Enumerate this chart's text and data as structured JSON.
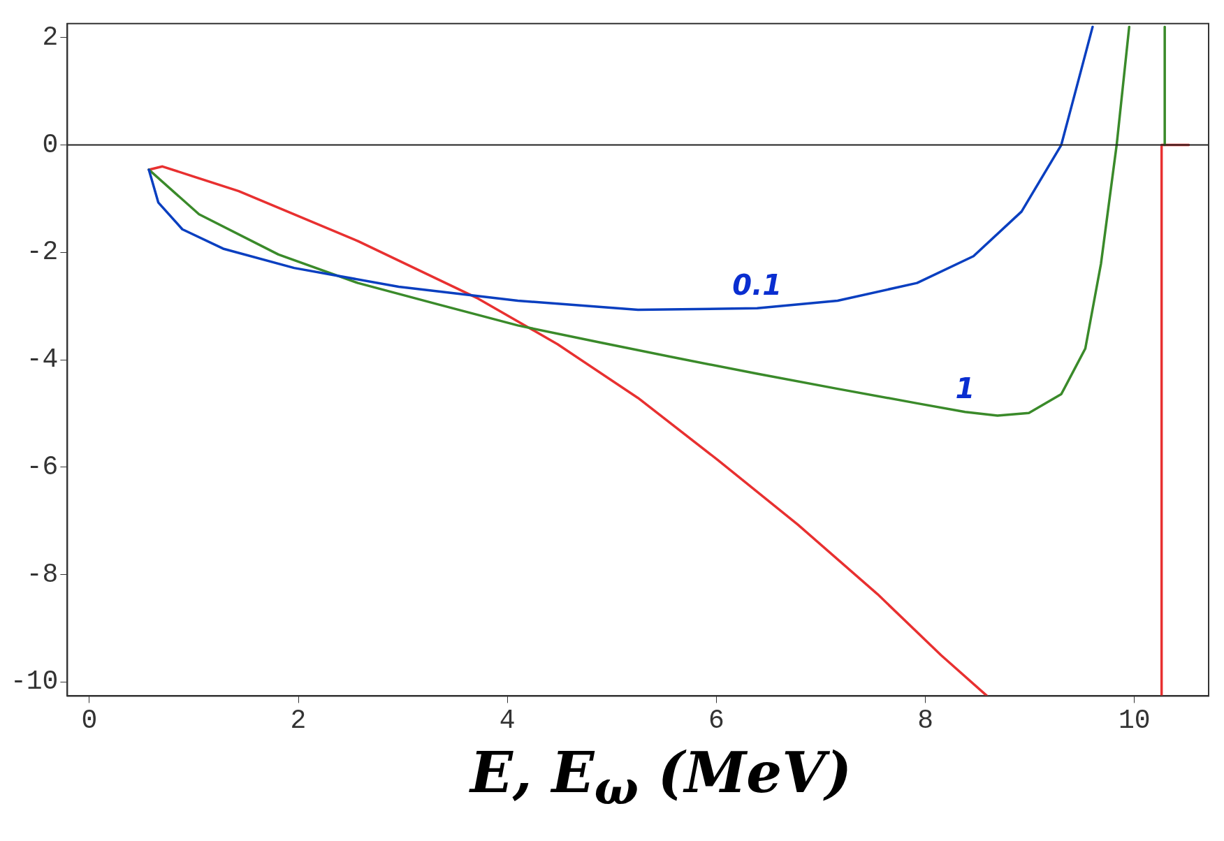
{
  "chart_data": {
    "type": "line",
    "xlabel": "E, E$_{ω}$   (MeV)",
    "xlim": [
      -0.21,
      10.71
    ],
    "ylim": [
      -10.26,
      2.26
    ],
    "xticks": [
      0,
      2,
      4,
      6,
      8,
      10
    ],
    "yticks": [
      -10,
      -8,
      -6,
      -4,
      -2,
      0,
      2
    ],
    "grid": false,
    "legend": false,
    "marker": "none",
    "line_style": "solid",
    "ref_lines": [
      {
        "axis": "y",
        "value": 0,
        "color": "#222222"
      }
    ],
    "annotations": [
      {
        "text": "0.1",
        "x": 6.39,
        "y": -3.04
      },
      {
        "text": "1",
        "x": 8.38,
        "y": -4.97
      }
    ],
    "series": [
      {
        "color": "#0a3fc0",
        "x": [
          0.57,
          0.66,
          0.89,
          1.28,
          1.96,
          2.96,
          4.1,
          5.25,
          6.39,
          7.16,
          7.92,
          8.46,
          8.92,
          9.3,
          9.6
        ],
        "values": [
          -0.46,
          -1.07,
          -1.57,
          -1.93,
          -2.29,
          -2.64,
          -2.9,
          -3.07,
          -3.04,
          -2.9,
          -2.57,
          -2.07,
          -1.24,
          0,
          2.2
        ]
      },
      {
        "color": "#3a8a2a",
        "x": [
          0.57,
          1.05,
          1.81,
          2.57,
          3.34,
          4.1,
          4.87,
          5.63,
          6.39,
          7.16,
          7.92,
          8.38,
          8.69,
          8.99,
          9.3,
          9.53,
          9.68,
          9.83,
          9.95
        ],
        "values": [
          -0.46,
          -1.29,
          -2.04,
          -2.57,
          -2.97,
          -3.36,
          -3.67,
          -3.97,
          -4.26,
          -4.54,
          -4.81,
          -4.97,
          -5.04,
          -4.99,
          -4.64,
          -3.79,
          -2.21,
          0,
          2.2
        ]
      },
      {
        "color": "#3a8a2a",
        "x": [
          10.29,
          10.29
        ],
        "values": [
          0,
          2.2
        ]
      },
      {
        "color": "#e83030",
        "x": [
          0.57,
          0.7,
          1.43,
          2.57,
          3.72,
          4.48,
          5.25,
          6.01,
          6.78,
          7.54,
          8.15,
          8.59
        ],
        "values": [
          -0.46,
          -0.4,
          -0.86,
          -1.79,
          -2.86,
          -3.71,
          -4.71,
          -5.86,
          -7.07,
          -8.36,
          -9.5,
          -10.26
        ]
      },
      {
        "color": "#e83030",
        "x": [
          10.26,
          10.26,
          10.52
        ],
        "values": [
          -10.26,
          0,
          0
        ]
      }
    ]
  }
}
